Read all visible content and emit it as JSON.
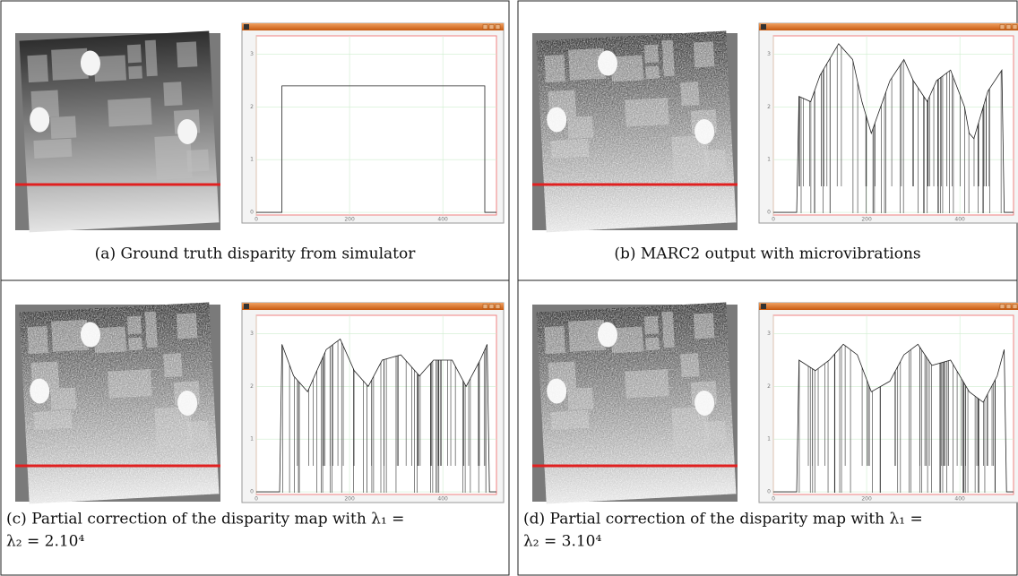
{
  "figure": {
    "panels": [
      {
        "caption": [
          "(a) Ground truth disparity from simulator"
        ],
        "noisy": false,
        "xlim": [
          0,
          515
        ],
        "ylim": [
          -0.05,
          3.35
        ],
        "xticks": [
          0,
          200,
          400
        ],
        "yticks": [
          0,
          1,
          2,
          3
        ],
        "x": [
          0,
          55,
          55,
          490,
          490,
          515
        ],
        "values": [
          0,
          0,
          2.4,
          2.4,
          0,
          0
        ]
      },
      {
        "caption": [
          "(b) MARC2 output with microvibrations"
        ],
        "noisy": true,
        "xlim": [
          0,
          515
        ],
        "ylim": [
          -0.05,
          3.35
        ],
        "xticks": [
          0,
          200,
          400
        ],
        "yticks": [
          0,
          1,
          2,
          3
        ],
        "x": [
          0,
          50,
          55,
          80,
          100,
          140,
          170,
          190,
          210,
          250,
          280,
          300,
          330,
          350,
          380,
          410,
          420,
          430,
          460,
          490,
          495,
          515
        ],
        "values": [
          0,
          0,
          2.2,
          2.1,
          2.6,
          3.2,
          2.9,
          2.1,
          1.5,
          2.5,
          2.9,
          2.5,
          2.1,
          2.5,
          2.7,
          2.0,
          1.5,
          1.4,
          2.3,
          2.7,
          0,
          0
        ]
      },
      {
        "caption": [
          "(c) Partial correction of the disparity map with λ₁ =",
          "λ₂ = 2.10⁴"
        ],
        "noisy": true,
        "xlim": [
          0,
          515
        ],
        "ylim": [
          -0.05,
          3.35
        ],
        "xticks": [
          0,
          200,
          400
        ],
        "yticks": [
          0,
          1,
          2,
          3
        ],
        "x": [
          0,
          50,
          55,
          80,
          110,
          150,
          180,
          210,
          240,
          270,
          310,
          350,
          380,
          420,
          450,
          480,
          495,
          500,
          515
        ],
        "values": [
          0,
          0,
          2.8,
          2.2,
          1.9,
          2.7,
          2.9,
          2.3,
          2.0,
          2.5,
          2.6,
          2.2,
          2.5,
          2.5,
          2.0,
          2.5,
          2.8,
          0,
          0
        ]
      },
      {
        "caption": [
          "(d) Partial correction of the disparity map with λ₁ =",
          "λ₂ = 3.10⁴"
        ],
        "noisy": true,
        "xlim": [
          0,
          515
        ],
        "ylim": [
          -0.05,
          3.35
        ],
        "xticks": [
          0,
          200,
          400
        ],
        "yticks": [
          0,
          1,
          2,
          3
        ],
        "x": [
          0,
          50,
          55,
          90,
          120,
          150,
          180,
          210,
          250,
          280,
          310,
          340,
          380,
          420,
          450,
          480,
          495,
          500,
          515
        ],
        "values": [
          0,
          0,
          2.5,
          2.3,
          2.5,
          2.8,
          2.6,
          1.9,
          2.1,
          2.6,
          2.8,
          2.4,
          2.5,
          1.9,
          1.7,
          2.2,
          2.7,
          0,
          0
        ]
      }
    ]
  }
}
